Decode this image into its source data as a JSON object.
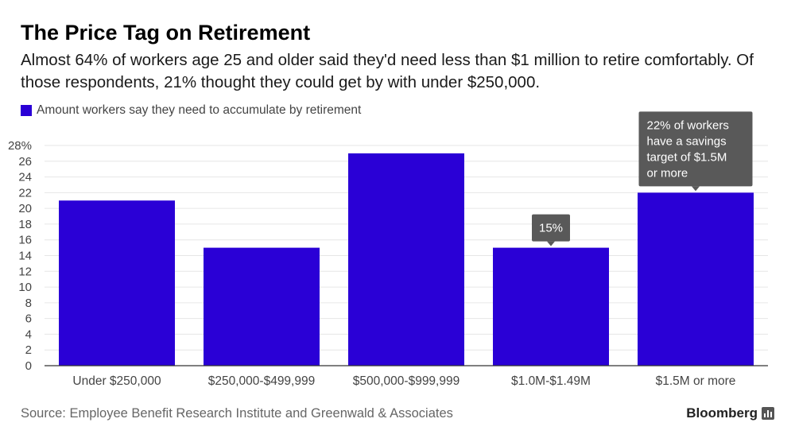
{
  "header": {
    "title": "The Price Tag on Retirement",
    "subtitle": "Almost 64% of workers age 25 and older said they'd need less than $1 million to retire comfortably. Of those respondents, 21% thought they could get by with under $250,000."
  },
  "legend": {
    "label": "Amount workers say they need to accumulate by retirement"
  },
  "footer": {
    "source": "Source: Employee Benefit Research Institute and Greenwald & Associates",
    "brand": "Bloomberg"
  },
  "colors": {
    "bar": "#2a00d6",
    "annotation_bg": "#595959",
    "grid": "#e6e6e6",
    "axis": "#333333"
  },
  "chart_data": {
    "type": "bar",
    "categories": [
      "Under $250,000",
      "$250,000-$499,999",
      "$500,000-$999,999",
      "$1.0M-$1.49M",
      "$1.5M or more"
    ],
    "series": [
      {
        "name": "Amount workers say they need to accumulate by retirement",
        "values": [
          21,
          15,
          27,
          15,
          22
        ]
      }
    ],
    "ylim": [
      0,
      28
    ],
    "yticks": [
      "0",
      "2",
      "4",
      "6",
      "8",
      "10",
      "12",
      "14",
      "16",
      "18",
      "20",
      "22",
      "24",
      "26",
      "28%"
    ],
    "grid": true,
    "annotations": [
      {
        "category_index": 3,
        "lines": [
          "15%"
        ]
      },
      {
        "category_index": 4,
        "lines": [
          "22% of workers",
          "have a savings",
          "target of $1.5M",
          "or more"
        ]
      }
    ]
  }
}
